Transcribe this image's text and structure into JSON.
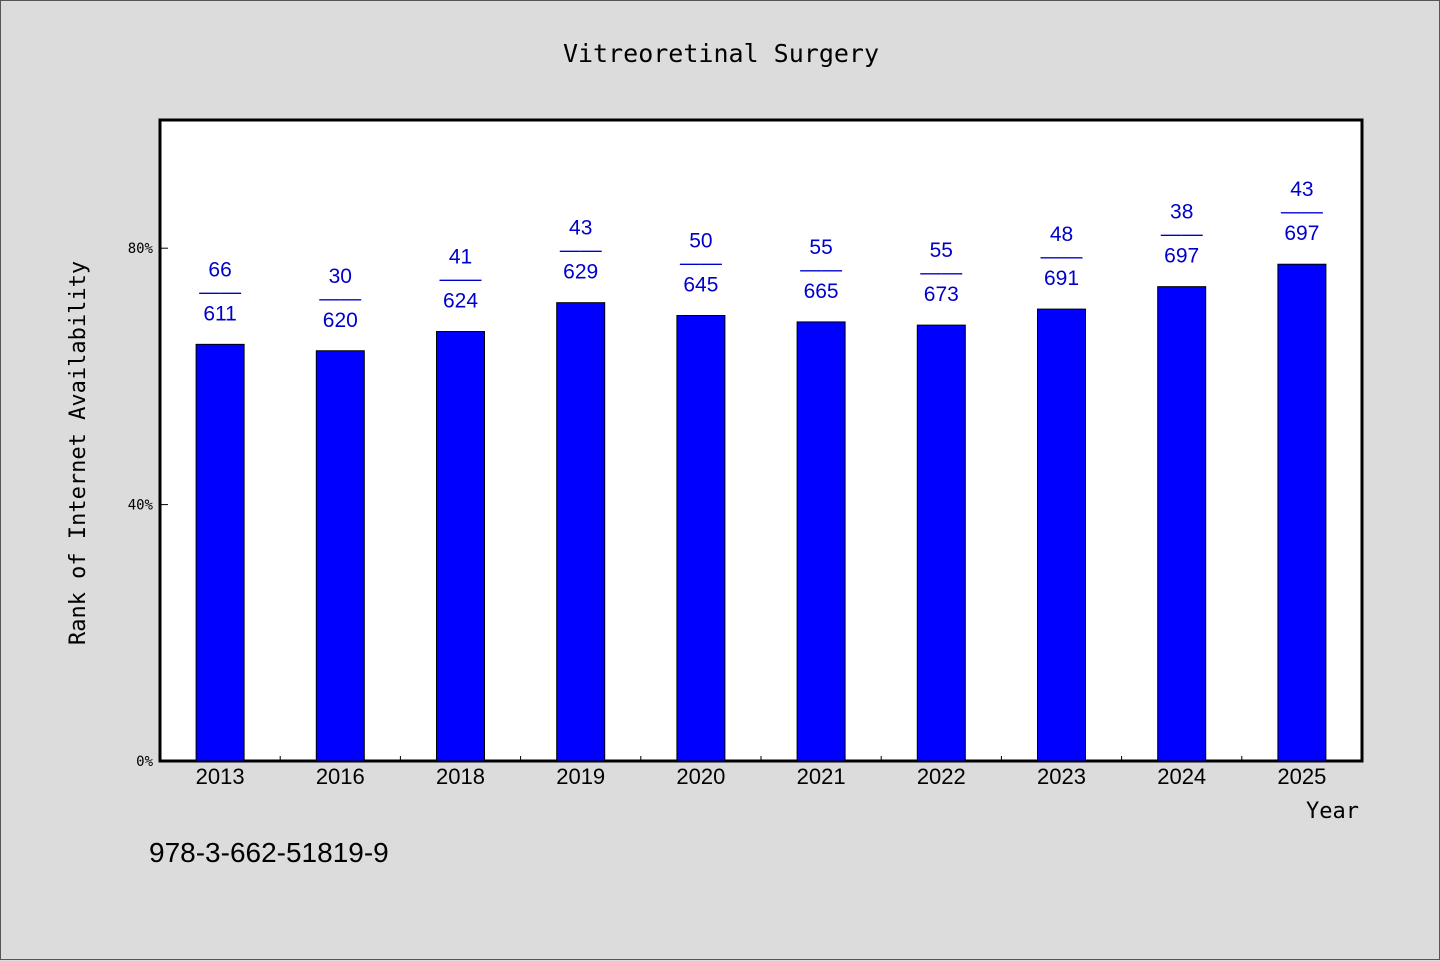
{
  "chart_data": {
    "type": "bar",
    "title": "Vitreoretinal Surgery",
    "xlabel": "Year",
    "ylabel": "Rank of Internet Availability",
    "categories": [
      "2013",
      "2016",
      "2018",
      "2019",
      "2020",
      "2021",
      "2022",
      "2023",
      "2024",
      "2025"
    ],
    "values": [
      65,
      64,
      67,
      71.5,
      69.5,
      68.5,
      68,
      70.5,
      74,
      77.5
    ],
    "value_unit": "%",
    "labels_top": [
      "66",
      "30",
      "41",
      "43",
      "50",
      "55",
      "55",
      "48",
      "38",
      "43"
    ],
    "labels_bottom": [
      "611",
      "620",
      "624",
      "629",
      "645",
      "665",
      "673",
      "691",
      "697",
      "697"
    ],
    "label_separator": "——",
    "yticks": [
      {
        "value": 0,
        "label": "0%"
      },
      {
        "value": 40,
        "label": "40%"
      },
      {
        "value": 80,
        "label": "80%"
      }
    ],
    "ylim": [
      0,
      100
    ],
    "grid": false,
    "legend": "none",
    "bar_color": "#0000ff",
    "label_color": "#0000cc"
  },
  "footer": {
    "isbn": "978-3-662-51819-9"
  }
}
